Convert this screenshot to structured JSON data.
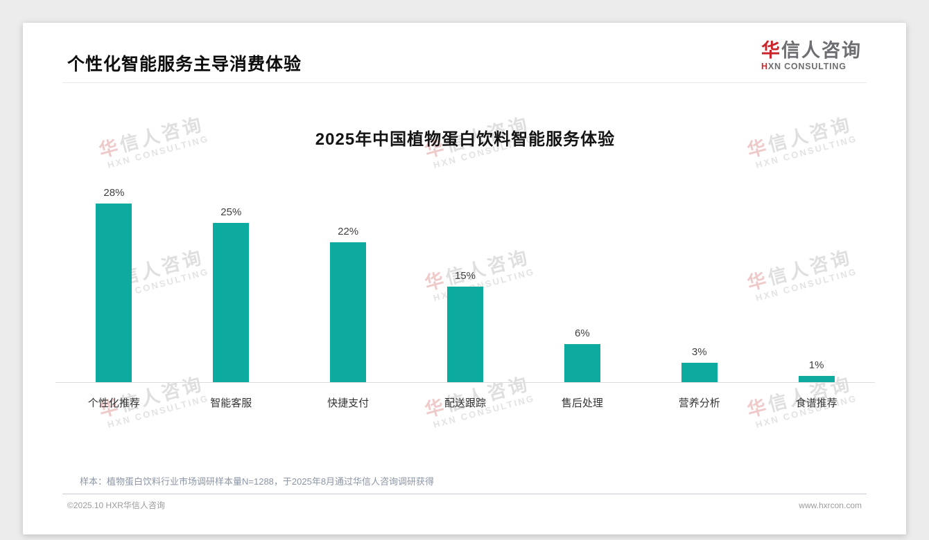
{
  "header": {
    "title": "个性化智能服务主导消费体验"
  },
  "logo": {
    "cn_first": "华",
    "cn_rest": "信人咨询",
    "en_first": "H",
    "en_rest": "XN CONSULTING"
  },
  "watermark": {
    "line1_first": "华",
    "line1_rest": "信人咨询",
    "line2": "HXN CONSULTING"
  },
  "chart_data": {
    "type": "bar",
    "title": "2025年中国植物蛋白饮料智能服务体验",
    "categories": [
      "个性化推荐",
      "智能客服",
      "快捷支付",
      "配送跟踪",
      "售后处理",
      "营养分析",
      "食谱推荐"
    ],
    "values": [
      28,
      25,
      22,
      15,
      6,
      3,
      1
    ],
    "unit": "%",
    "value_labels": [
      "28%",
      "25%",
      "22%",
      "15%",
      "6%",
      "3%",
      "1%"
    ],
    "xlabel": "",
    "ylabel": "",
    "ylim": [
      0,
      30
    ],
    "grid": false,
    "legend": "none",
    "bar_color": "#0daaa0"
  },
  "note": "样本：植物蛋白饮料行业市场调研样本量N=1288，于2025年8月通过华信人咨询调研获得",
  "footer": {
    "left": "©2025.10 HXR华信人咨询",
    "right": "www.hxrcon.com"
  },
  "colors": {
    "bar": "#0daaa0",
    "brand_red": "#c9252b",
    "logo_gray": "#6d6e71"
  }
}
